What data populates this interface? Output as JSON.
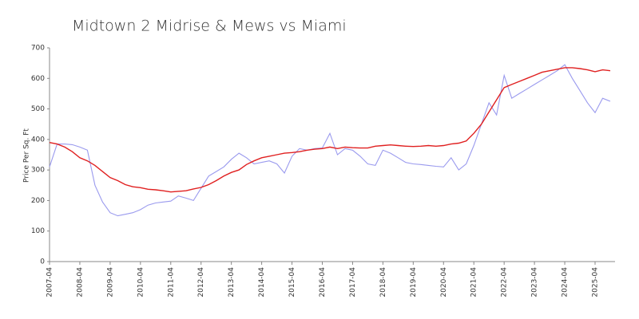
{
  "chart_data": {
    "type": "line",
    "title": "Midtown 2 Midrise & Mews vs Miami",
    "y_label": "Price Per Sq. Ft",
    "categories": [
      "2007-04",
      null,
      null,
      null,
      "2008-04",
      null,
      null,
      null,
      "2009-04",
      null,
      null,
      null,
      "2010-04",
      null,
      null,
      null,
      "2011-04",
      null,
      null,
      null,
      "2012-04",
      null,
      null,
      null,
      "2013-04",
      null,
      null,
      null,
      "2014-04",
      null,
      null,
      null,
      "2015-04",
      null,
      null,
      null,
      "2016-04",
      null,
      null,
      null,
      "2017-04",
      null,
      null,
      null,
      "2018-04",
      null,
      null,
      null,
      "2019-04",
      null,
      null,
      null,
      "2020-04",
      null,
      null,
      null,
      "2021-04",
      null,
      null,
      null,
      "2022-04",
      null,
      null,
      null,
      "2023-04",
      null,
      null,
      null,
      "2024-04",
      null,
      null,
      null,
      "2025-04",
      null,
      null
    ],
    "series": [
      {
        "color": "#9a9aee",
        "values": [
          310,
          385,
          385,
          383,
          375,
          365,
          250,
          195,
          160,
          150,
          155,
          160,
          170,
          185,
          192,
          195,
          198,
          215,
          208,
          200,
          240,
          280,
          295,
          310,
          335,
          355,
          340,
          320,
          325,
          330,
          320,
          290,
          345,
          370,
          365,
          370,
          372,
          420,
          350,
          370,
          365,
          345,
          320,
          315,
          365,
          355,
          340,
          325,
          320,
          318,
          315,
          312,
          310,
          340,
          300,
          320,
          380,
          450,
          520,
          480,
          610,
          535,
          550,
          565,
          580,
          595,
          610,
          625,
          645,
          600,
          560,
          520,
          488,
          535,
          525
        ]
      },
      {
        "color": "#e02020",
        "values": [
          390,
          385,
          375,
          360,
          340,
          330,
          315,
          295,
          275,
          265,
          252,
          245,
          242,
          237,
          235,
          232,
          228,
          230,
          232,
          238,
          243,
          252,
          265,
          280,
          292,
          300,
          318,
          330,
          340,
          345,
          350,
          355,
          357,
          360,
          365,
          368,
          370,
          375,
          370,
          375,
          373,
          372,
          372,
          378,
          380,
          382,
          380,
          378,
          377,
          378,
          380,
          378,
          380,
          385,
          388,
          395,
          420,
          450,
          490,
          530,
          570,
          580,
          590,
          600,
          610,
          620,
          625,
          630,
          635,
          635,
          632,
          628,
          622,
          628,
          625
        ]
      }
    ],
    "ylim": [
      0,
      700
    ],
    "yticks": [
      0,
      100,
      200,
      300,
      400,
      500,
      600,
      700
    ],
    "grid": false
  }
}
